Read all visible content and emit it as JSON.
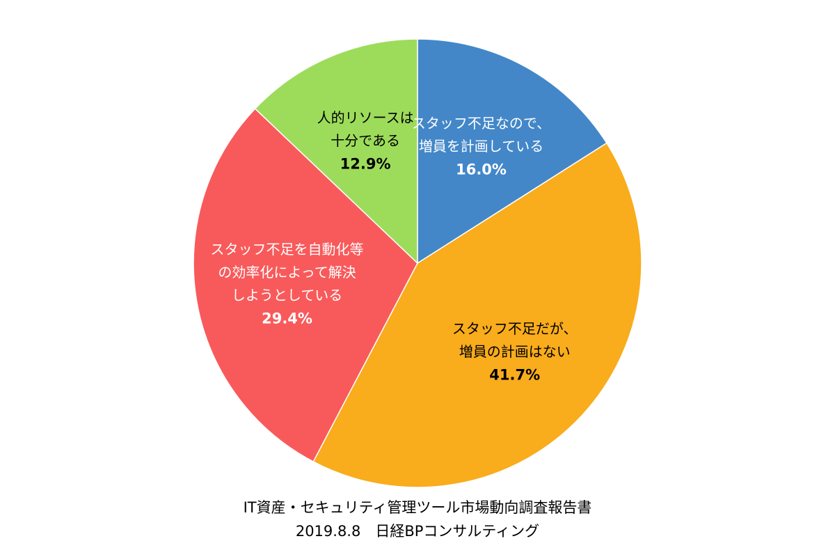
{
  "chart_data": {
    "type": "pie",
    "categories": [
      [
        "スタッフ不足なので、",
        "増員を計画している"
      ],
      [
        "スタッフ不足だが、",
        "増員の計画はない"
      ],
      [
        "スタッフ不足を自動化等",
        "の効率化によって解決",
        "しようとしている"
      ],
      [
        "人的リソースは",
        "十分である"
      ]
    ],
    "values": [
      16.0,
      41.7,
      29.4,
      12.9
    ],
    "value_labels": [
      "16.0%",
      "41.7%",
      "29.4%",
      "12.9%"
    ],
    "colors": [
      "#4387c8",
      "#f9ac1c",
      "#f85a5b",
      "#9ddc5b"
    ],
    "label_colors": [
      "#ffffff",
      "#000000",
      "#ffffff",
      "#000000"
    ],
    "source": [
      "IT資産・セキュリティ管理ツール市場動向調査報告書",
      "2019.8.8　日経BPコンサルティング"
    ]
  }
}
